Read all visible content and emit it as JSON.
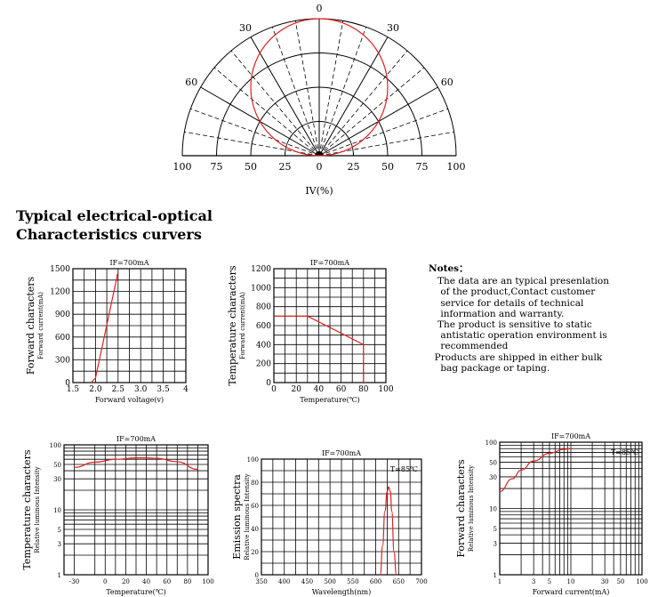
{
  "heading": [
    "Typical electrical-optical",
    "Characteristics curvers"
  ],
  "notes": {
    "title": "Notes：",
    "lines": [
      "   The data are an typical presenlation",
      "    of the product,Contact customer",
      "    service for details of technical",
      "    information and warranty.",
      "   The product is sensitive to static",
      "    antistatic operation environment is",
      "    recommended",
      "  Products are shipped in either bulk",
      "    bag package or taping."
    ]
  },
  "chart_data": [
    {
      "type": "polar",
      "angle_labels": [
        "0",
        "30",
        "30",
        "60",
        "60"
      ],
      "angles_deg": [
        0,
        -30,
        30,
        -60,
        60
      ],
      "radial_labels": [
        "100",
        "75",
        "50",
        "25",
        "0",
        "25",
        "50",
        "75",
        "100"
      ],
      "xlabel": "IV(%)",
      "series": [
        {
          "color": "#e02020",
          "pattern": "relative intensity ≈ cos(θ)",
          "points": [
            [
              0,
              100
            ],
            [
              15,
              96
            ],
            [
              30,
              87
            ],
            [
              45,
              71
            ],
            [
              60,
              50
            ],
            [
              75,
              26
            ],
            [
              90,
              0
            ]
          ]
        }
      ]
    },
    {
      "type": "line",
      "title": "IF=700mA",
      "ylabel": "Forward characters",
      "ylabel_sub": "Forward current(mA)",
      "xlabel": "Forward voltage(v)",
      "xlim": [
        1.5,
        4.0
      ],
      "ylim": [
        0,
        1500
      ],
      "xticks": [
        "1.5",
        "2.0",
        "2.5",
        "3.0",
        "3.5",
        "4"
      ],
      "yticks": [
        "0",
        "300",
        "600",
        "900",
        "1200",
        "1500"
      ],
      "series": [
        {
          "color": "#e02020",
          "x": [
            1.9,
            2.0,
            2.5
          ],
          "y": [
            0,
            60,
            1460
          ]
        }
      ]
    },
    {
      "type": "line",
      "title": "IF=700mA",
      "ylabel": "Temperature characters",
      "ylabel_sub": "Forward current(mA)",
      "xlabel": "Temperature(℃)",
      "xlim": [
        0,
        100
      ],
      "ylim": [
        0,
        1200
      ],
      "xticks": [
        "0",
        "20",
        "40",
        "60",
        "80",
        "100"
      ],
      "yticks": [
        "0",
        "200",
        "400",
        "600",
        "800",
        "1000",
        "1200"
      ],
      "series": [
        {
          "color": "#e02020",
          "x": [
            0,
            30,
            80,
            80
          ],
          "y": [
            700,
            700,
            400,
            0
          ]
        }
      ]
    },
    {
      "type": "line",
      "title": "IF=700mA",
      "ylabel": "Temperature characters",
      "ylabel_sub": "Relative luminous Intensity",
      "xlabel": "Temperature(℃)",
      "xlim": [
        -40,
        100
      ],
      "ylim": [
        1,
        100
      ],
      "yscale": "log",
      "xticks": [
        "-30",
        "0",
        "20",
        "40",
        "60",
        "80",
        "100"
      ],
      "yticks": [
        "1",
        "3",
        "5",
        "10",
        "30",
        "50",
        "100"
      ],
      "series": [
        {
          "color": "#e02020",
          "x": [
            -30,
            -10,
            10,
            30,
            40,
            50,
            70,
            90
          ],
          "y": [
            45,
            54,
            60,
            63,
            63,
            62,
            55,
            42
          ]
        }
      ]
    },
    {
      "type": "line",
      "title": "IF=700mA",
      "annotation": "T=85℃",
      "ylabel": "Emission spectra",
      "ylabel_sub": "Relative luminous Intensity",
      "xlabel": "Wavelength(nm)",
      "xlim": [
        350,
        700
      ],
      "ylim": [
        0,
        100
      ],
      "xticks": [
        "350",
        "400",
        "450",
        "500",
        "550",
        "600",
        "650",
        "700"
      ],
      "yticks": [
        "0",
        "20",
        "40",
        "60",
        "80",
        "100"
      ],
      "series": [
        {
          "color": "#e02020",
          "x": [
            610,
            615,
            620,
            625,
            628,
            632,
            635,
            640,
            645
          ],
          "y": [
            0,
            25,
            55,
            72,
            76,
            72,
            55,
            20,
            0
          ]
        }
      ]
    },
    {
      "type": "line",
      "title": "IF=700mA",
      "annotation": "T=85℃",
      "ylabel": "Forward characters",
      "ylabel_sub": "Relative luminous Intensity",
      "xlabel": "Forward current(mA)",
      "xlim": [
        1,
        100
      ],
      "ylim": [
        1,
        100
      ],
      "xscale": "log",
      "yscale": "log",
      "xticks": [
        "1",
        "3",
        "5",
        "10",
        "30",
        "50",
        "100"
      ],
      "yticks": [
        "1",
        "3",
        "5",
        "10",
        "30",
        "50",
        "100"
      ],
      "series": [
        {
          "color": "#e02020",
          "x": [
            1,
            1.5,
            2,
            3,
            5,
            8,
            10
          ],
          "y": [
            18,
            28,
            38,
            52,
            68,
            78,
            80
          ]
        }
      ]
    }
  ]
}
